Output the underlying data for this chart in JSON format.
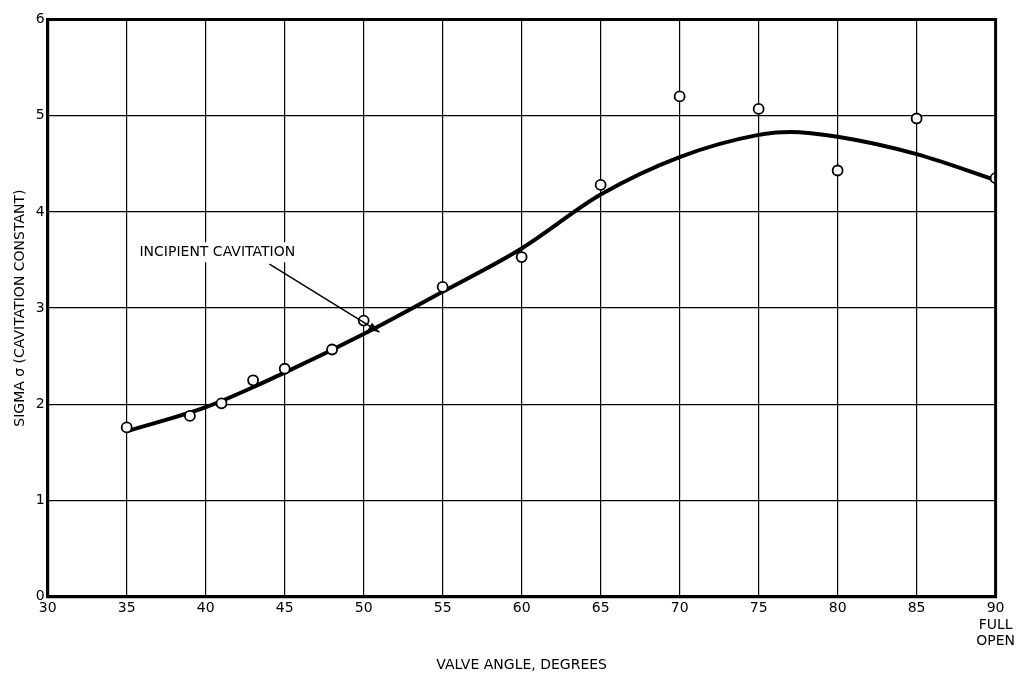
{
  "chart_data": {
    "type": "scatter",
    "xlabel": "VALVE ANGLE, DEGREES",
    "ylabel": "SIGMA σ (CAVITATION CONSTANT)",
    "xlim": [
      30,
      90
    ],
    "xticks": [
      30,
      35,
      40,
      45,
      50,
      55,
      60,
      65,
      70,
      75,
      80,
      85,
      {
        "value": 90,
        "label": "90\nFULL\nOPEN"
      }
    ],
    "ylim": [
      0,
      6
    ],
    "yticks": [
      0,
      1,
      2,
      3,
      4,
      5,
      6
    ],
    "grid": true,
    "legend": false,
    "series": [
      {
        "color": "#000000",
        "marker": "circle",
        "x": [
          35,
          39,
          41,
          43,
          45,
          48,
          50,
          55,
          60,
          65,
          70,
          75,
          80,
          85,
          90
        ],
        "values": [
          1.76,
          1.88,
          2.01,
          2.25,
          2.37,
          2.57,
          2.87,
          3.22,
          3.53,
          4.28,
          5.2,
          5.07,
          4.43,
          4.97,
          4.35
        ]
      },
      {
        "type": "line",
        "color": "#000000",
        "marker": "none",
        "line_style": "solid",
        "x": [
          35,
          40,
          45,
          50,
          55,
          60,
          65,
          70,
          75,
          77,
          80,
          85,
          90
        ],
        "values": [
          1.72,
          1.97,
          2.33,
          2.73,
          3.17,
          3.62,
          4.18,
          4.57,
          4.8,
          4.83,
          4.78,
          4.6,
          4.33
        ]
      }
    ],
    "annotations": [
      {
        "text": "INCIPIENT CAVITATION",
        "x": 51,
        "y": 2.75
      }
    ]
  }
}
